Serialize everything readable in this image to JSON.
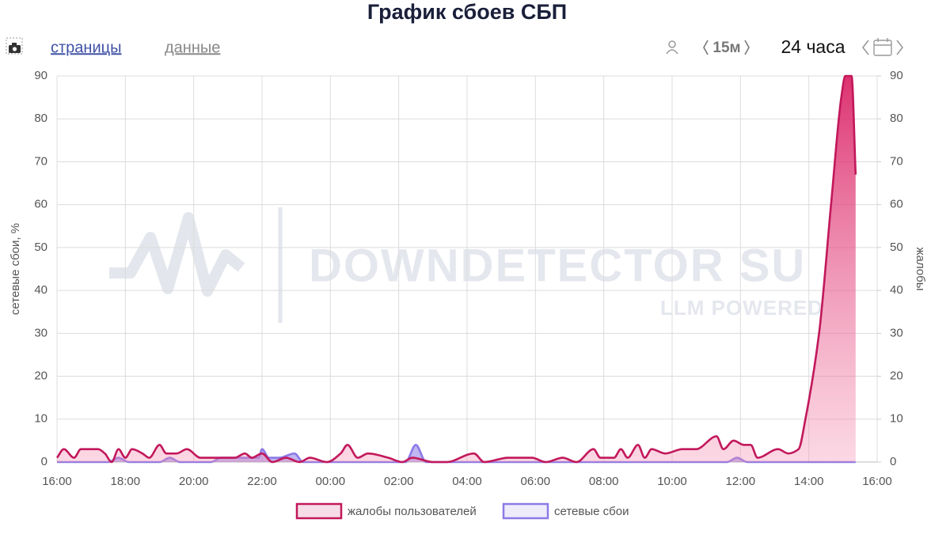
{
  "toolbar": {
    "pages": "страницы",
    "data": "данные",
    "interval": "15м",
    "range": "24 часа"
  },
  "chart_data": {
    "type": "area",
    "title": "График сбоев СБП",
    "y_label": "сетевые сбои, %",
    "y2_label": "жалобы",
    "watermark": "DOWNDETECTOR SU",
    "watermark_sub": "LLM POWERED",
    "xlim": [
      0,
      24
    ],
    "xticks": [
      {
        "value": 0,
        "label": "16:00"
      },
      {
        "value": 2,
        "label": "18:00"
      },
      {
        "value": 4,
        "label": "20:00"
      },
      {
        "value": 6,
        "label": "22:00"
      },
      {
        "value": 8,
        "label": "00:00"
      },
      {
        "value": 10,
        "label": "02:00"
      },
      {
        "value": 12,
        "label": "04:00"
      },
      {
        "value": 14,
        "label": "06:00"
      },
      {
        "value": 16,
        "label": "08:00"
      },
      {
        "value": 18,
        "label": "10:00"
      },
      {
        "value": 20,
        "label": "12:00"
      },
      {
        "value": 22,
        "label": "14:00"
      },
      {
        "value": 24,
        "label": "16:00"
      }
    ],
    "ylim": [
      0,
      90
    ],
    "yticks": [
      0,
      10,
      20,
      30,
      40,
      50,
      60,
      70,
      80,
      90
    ],
    "y2lim": [
      0,
      90
    ],
    "y2ticks": [
      0,
      10,
      20,
      30,
      40,
      50,
      60,
      70,
      80,
      90
    ],
    "grid": true,
    "legend": "bottom",
    "series": [
      {
        "name": "жалобы пользователей",
        "color": "#c2185b",
        "axis": "y2",
        "x": [
          0,
          0.2,
          0.5,
          0.7,
          1.2,
          1.4,
          1.6,
          1.8,
          2,
          2.2,
          2.5,
          2.7,
          3,
          3.2,
          3.5,
          3.8,
          4.2,
          5.2,
          5.5,
          5.7,
          6,
          6.3,
          6.7,
          7.1,
          7.4,
          7.9,
          8.3,
          8.5,
          8.8,
          9.1,
          9.7,
          10.1,
          10.4,
          11,
          11.4,
          12.2,
          12.5,
          13.2,
          13.9,
          14.3,
          14.8,
          15.2,
          15.7,
          15.9,
          16.3,
          16.5,
          16.7,
          17,
          17.2,
          17.4,
          17.8,
          18.3,
          18.7,
          19.3,
          19.5,
          19.8,
          20.1,
          20.3,
          20.5,
          21.1,
          21.4,
          21.7,
          21.9,
          22.3,
          22.65,
          22.95,
          23.07,
          23.25,
          23.37
        ],
        "values": [
          1,
          3,
          1,
          3,
          3,
          2,
          0,
          3,
          1,
          3,
          2,
          1,
          4,
          2,
          2,
          3,
          1,
          1,
          2,
          1,
          2,
          0,
          1,
          0,
          1,
          0,
          2,
          4,
          1,
          2,
          1,
          0,
          1,
          0,
          0,
          2,
          0,
          1,
          1,
          0,
          1,
          0,
          3,
          1,
          1,
          3,
          1,
          4,
          1,
          3,
          2,
          3,
          3,
          6,
          3,
          5,
          4,
          4,
          1,
          3,
          2,
          3,
          10,
          30,
          60,
          85,
          90,
          90,
          67
        ]
      },
      {
        "name": "сетевые сбои",
        "color": "#8c7ae6",
        "axis": "y",
        "x": [
          0,
          1.5,
          1.8,
          2.1,
          3,
          3.3,
          3.6,
          4.5,
          4.8,
          5.5,
          5.9,
          6,
          6.2,
          6.5,
          6.95,
          7.2,
          10.2,
          10.5,
          10.8,
          19.6,
          19.9,
          20.2,
          23.37
        ],
        "values": [
          0,
          0,
          1,
          0,
          0,
          1,
          0,
          0,
          1,
          1,
          1,
          3,
          1,
          1,
          2,
          0,
          0,
          4,
          0,
          0,
          1,
          0,
          0
        ]
      }
    ]
  }
}
